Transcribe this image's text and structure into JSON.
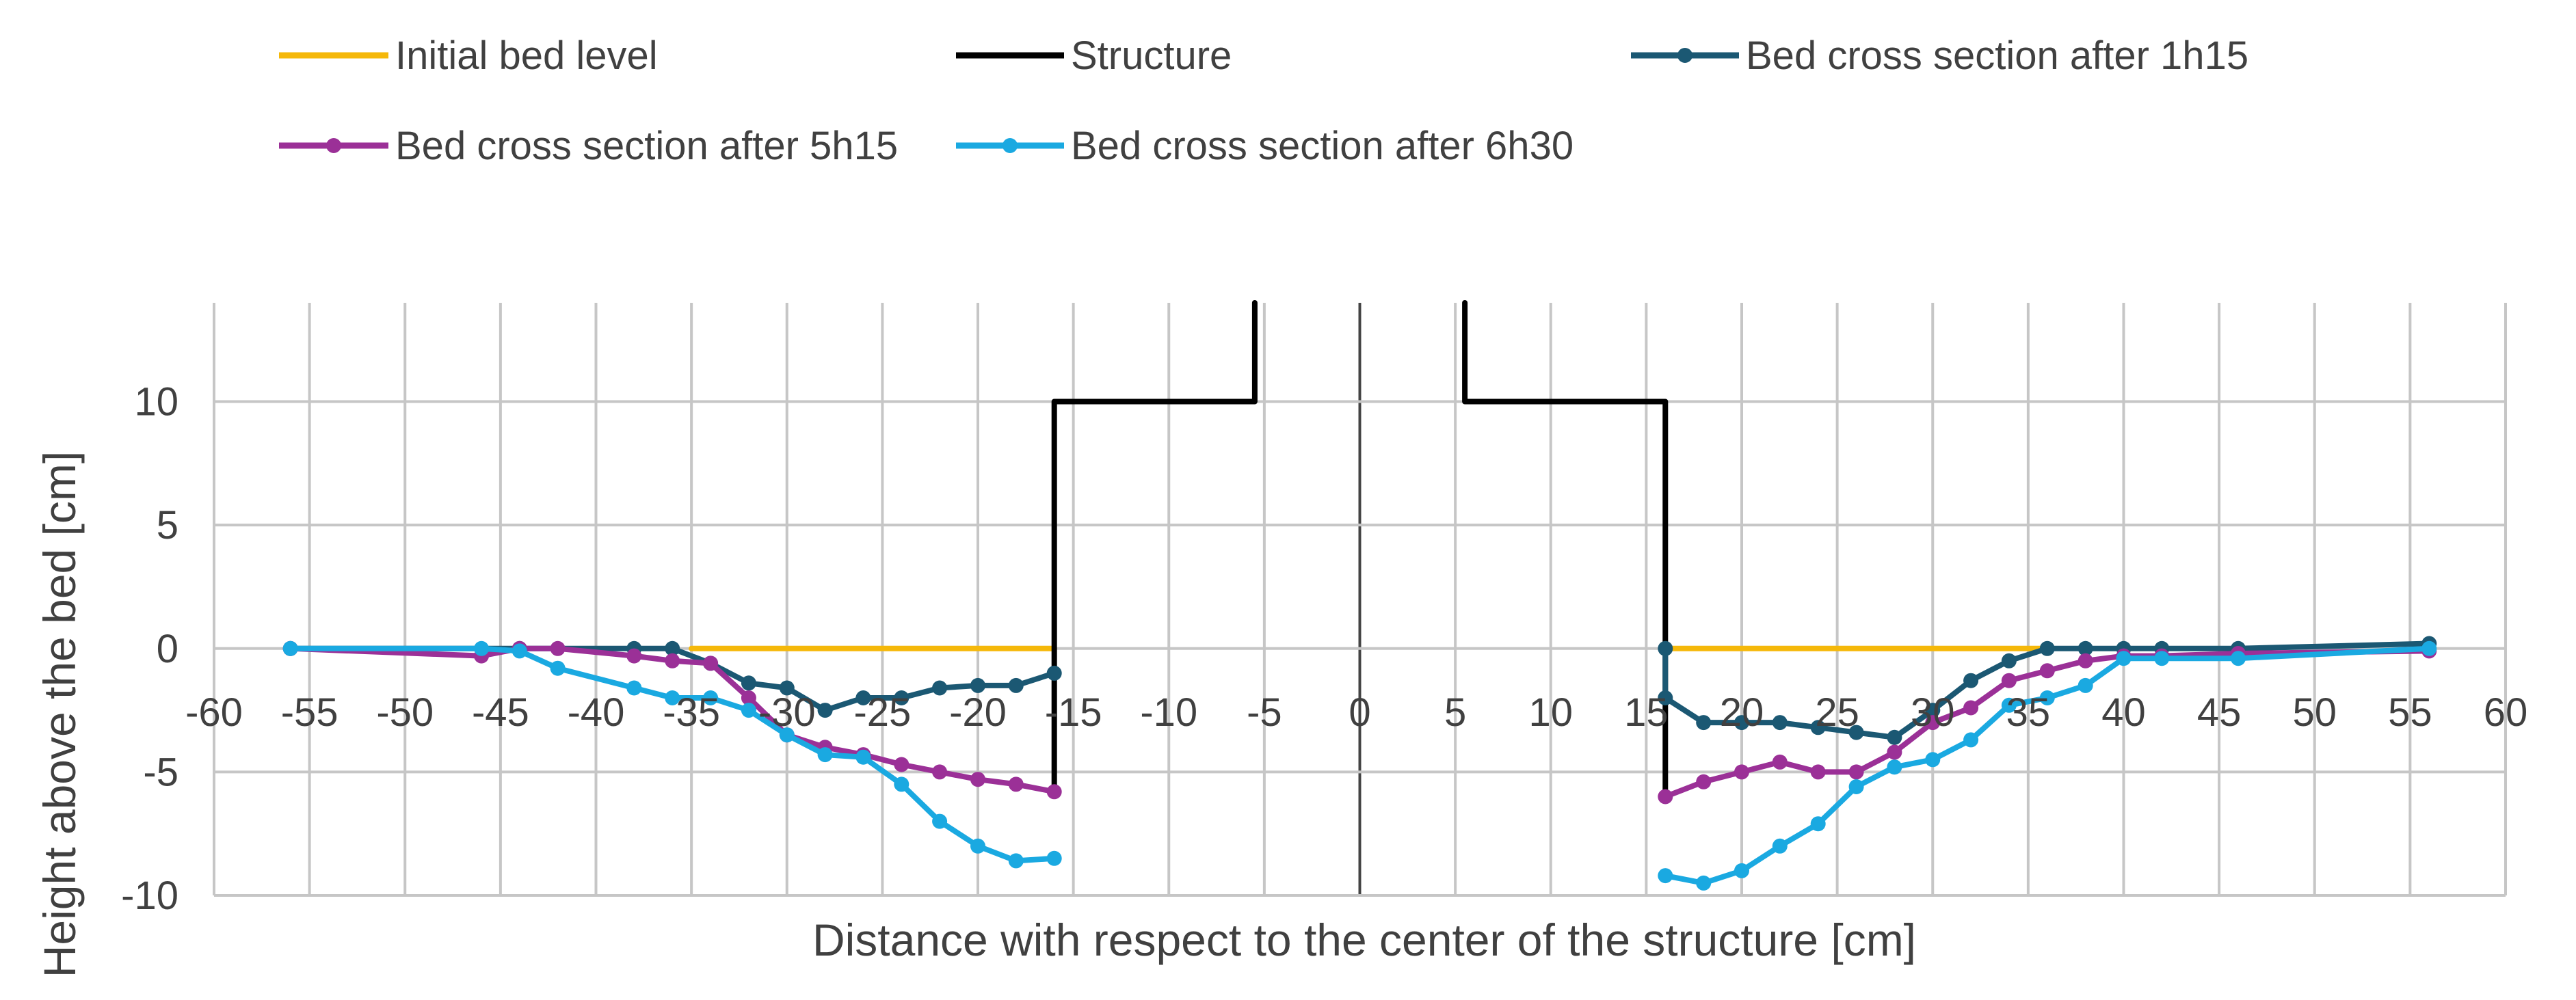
{
  "chart_data": {
    "type": "line",
    "title": "",
    "xlabel": "Distance with respect to the center of the structure [cm]",
    "ylabel": "Height above the bed [cm]",
    "xlim": [
      -60,
      60
    ],
    "ylim": [
      -10,
      14
    ],
    "x_ticks": [
      -60,
      -55,
      -50,
      -45,
      -40,
      -35,
      -30,
      -25,
      -20,
      -15,
      -10,
      -5,
      0,
      5,
      10,
      15,
      20,
      25,
      30,
      35,
      40,
      45,
      50,
      55,
      60
    ],
    "y_ticks": [
      -10,
      -5,
      0,
      5,
      10
    ],
    "x_tick_labels": [
      "-60",
      "-55",
      "-50",
      "-45",
      "-40",
      "-35",
      "-30",
      "-25",
      "-20",
      "-15",
      "-10",
      "-5",
      "0",
      "5",
      "10",
      "15",
      "20",
      "25",
      "30",
      "35",
      "40",
      "45",
      "50",
      "55",
      "60"
    ],
    "y_tick_labels": [
      "-10",
      "-5",
      "0",
      "5",
      "10"
    ],
    "grid": true,
    "legend_position": "top",
    "series": [
      {
        "name": "Initial bed level",
        "color": "#F5B80A",
        "markers": false,
        "segments": [
          [
            [
              -35,
              0
            ],
            [
              -16,
              0
            ]
          ],
          [
            [
              16,
              0
            ],
            [
              36,
              0
            ]
          ]
        ]
      },
      {
        "name": "Structure",
        "color": "#000000",
        "markers": false,
        "segments": [
          [
            [
              -16,
              -5.8
            ],
            [
              -16,
              10
            ],
            [
              -5.5,
              10
            ],
            [
              -5.5,
              14
            ]
          ],
          [
            [
              5.5,
              14
            ],
            [
              5.5,
              10
            ],
            [
              16,
              10
            ],
            [
              16,
              -6
            ]
          ]
        ]
      },
      {
        "name": "Bed cross section after 1h15",
        "color": "#1B5873",
        "markers": true,
        "segments": [
          [
            [
              -56,
              0
            ],
            [
              -44,
              0
            ],
            [
              -38,
              0
            ],
            [
              -36,
              0
            ],
            [
              -34,
              -0.6
            ],
            [
              -32,
              -1.4
            ],
            [
              -30,
              -1.6
            ],
            [
              -28,
              -2.5
            ],
            [
              -26,
              -2.0
            ],
            [
              -24,
              -2.0
            ],
            [
              -22,
              -1.6
            ],
            [
              -20,
              -1.5
            ],
            [
              -18,
              -1.5
            ],
            [
              -16,
              -1.0
            ]
          ],
          [
            [
              16,
              0
            ],
            [
              16,
              -2
            ],
            [
              18,
              -3.0
            ],
            [
              20,
              -3.0
            ],
            [
              22,
              -3.0
            ],
            [
              24,
              -3.2
            ],
            [
              26,
              -3.4
            ],
            [
              28,
              -3.6
            ],
            [
              30,
              -2.5
            ],
            [
              32,
              -1.3
            ],
            [
              34,
              -0.5
            ],
            [
              36,
              0
            ],
            [
              38,
              0
            ],
            [
              40,
              0
            ],
            [
              42,
              0
            ],
            [
              46,
              0
            ],
            [
              56,
              0.2
            ]
          ]
        ]
      },
      {
        "name": "Bed cross section after 5h15",
        "color": "#9B3097",
        "markers": true,
        "segments": [
          [
            [
              -56,
              0
            ],
            [
              -46,
              -0.3
            ],
            [
              -44,
              0
            ],
            [
              -42,
              0
            ],
            [
              -38,
              -0.3
            ],
            [
              -36,
              -0.5
            ],
            [
              -34,
              -0.6
            ],
            [
              -32,
              -2.0
            ],
            [
              -30,
              -3.5
            ],
            [
              -28,
              -4.0
            ],
            [
              -26,
              -4.3
            ],
            [
              -24,
              -4.7
            ],
            [
              -22,
              -5.0
            ],
            [
              -20,
              -5.3
            ],
            [
              -18,
              -5.5
            ],
            [
              -16,
              -5.8
            ]
          ],
          [
            [
              16,
              -6.0
            ],
            [
              18,
              -5.4
            ],
            [
              20,
              -5.0
            ],
            [
              22,
              -4.6
            ],
            [
              24,
              -5.0
            ],
            [
              26,
              -5.0
            ],
            [
              28,
              -4.2
            ],
            [
              30,
              -3.0
            ],
            [
              32,
              -2.4
            ],
            [
              34,
              -1.3
            ],
            [
              36,
              -0.9
            ],
            [
              38,
              -0.5
            ],
            [
              40,
              -0.3
            ],
            [
              42,
              -0.3
            ],
            [
              46,
              -0.2
            ],
            [
              56,
              -0.1
            ]
          ]
        ]
      },
      {
        "name": "Bed cross section after 6h30",
        "color": "#1AA9E1",
        "markers": true,
        "segments": [
          [
            [
              -56,
              0
            ],
            [
              -46,
              0
            ],
            [
              -44,
              -0.1
            ],
            [
              -42,
              -0.8
            ],
            [
              -38,
              -1.6
            ],
            [
              -36,
              -2.0
            ],
            [
              -34,
              -2.0
            ],
            [
              -32,
              -2.5
            ],
            [
              -30,
              -3.5
            ],
            [
              -28,
              -4.3
            ],
            [
              -26,
              -4.4
            ],
            [
              -24,
              -5.5
            ],
            [
              -22,
              -7.0
            ],
            [
              -20,
              -8.0
            ],
            [
              -18,
              -8.6
            ],
            [
              -16,
              -8.5
            ]
          ],
          [
            [
              16,
              -9.2
            ],
            [
              18,
              -9.5
            ],
            [
              20,
              -9.0
            ],
            [
              22,
              -8.0
            ],
            [
              24,
              -7.1
            ],
            [
              26,
              -5.6
            ],
            [
              28,
              -4.8
            ],
            [
              30,
              -4.5
            ],
            [
              32,
              -3.7
            ],
            [
              34,
              -2.3
            ],
            [
              36,
              -2.0
            ],
            [
              38,
              -1.5
            ],
            [
              40,
              -0.4
            ],
            [
              42,
              -0.4
            ],
            [
              46,
              -0.4
            ],
            [
              56,
              0
            ]
          ]
        ]
      }
    ]
  }
}
